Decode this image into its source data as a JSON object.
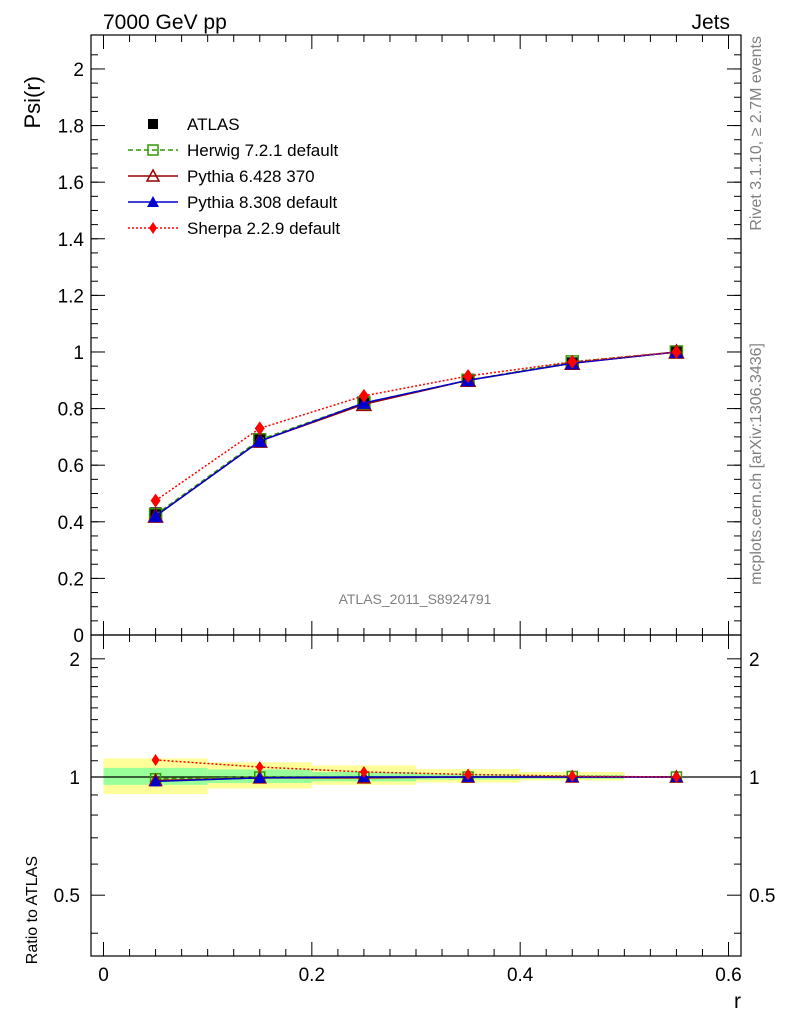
{
  "header": {
    "left": "7000 GeV pp",
    "right": "Jets"
  },
  "side_labels": {
    "rivet": "Rivet 3.1.10, ≥ 2.7M events",
    "mcplots": "mcplots.cern.ch [arXiv:1306.3436]"
  },
  "analysis_id": "ATLAS_2011_S8924791",
  "colors": {
    "atlas": "#000000",
    "herwig": "#339900",
    "pythia6": "#990000",
    "pythia8": "#0000cc",
    "sherpa": "#ff0000",
    "band_yellow": "#ffff99",
    "band_green": "#99ff99"
  },
  "chart_data": [
    {
      "type": "line",
      "name": "main",
      "xlabel": "",
      "ylabel": "Psi(r)",
      "xlim": [
        -0.012,
        0.612
      ],
      "ylim": [
        0,
        2.12
      ],
      "y_ticks": [
        0,
        0.2,
        0.4,
        0.6,
        0.8,
        1,
        1.2,
        1.4,
        1.6,
        1.8,
        2
      ],
      "y_tick_labels": [
        "0",
        "0.2",
        "0.4",
        "0.6",
        "0.8",
        "1",
        "1.2",
        "1.4",
        "1.6",
        "1.8",
        "2"
      ],
      "legend_position": "top-left",
      "x": [
        0.05,
        0.15,
        0.25,
        0.35,
        0.45,
        0.55
      ],
      "series": [
        {
          "name": "ATLAS",
          "key": "atlas",
          "marker": "square-filled",
          "line": "none",
          "values": [
            0.43,
            0.69,
            0.82,
            0.9,
            0.96,
            1.0
          ]
        },
        {
          "name": "Herwig 7.2.1 default",
          "key": "herwig",
          "marker": "square-open",
          "line": "dashed",
          "values": [
            0.425,
            0.69,
            0.82,
            0.9,
            0.965,
            1.0
          ]
        },
        {
          "name": "Pythia 6.428 370",
          "key": "pythia6",
          "marker": "triangle-open",
          "line": "solid",
          "values": [
            0.42,
            0.685,
            0.815,
            0.9,
            0.96,
            1.0
          ]
        },
        {
          "name": "Pythia 8.308 default",
          "key": "pythia8",
          "marker": "triangle-filled",
          "line": "solid",
          "values": [
            0.42,
            0.685,
            0.82,
            0.9,
            0.96,
            1.0
          ]
        },
        {
          "name": "Sherpa 2.2.9 default",
          "key": "sherpa",
          "marker": "diamond-filled",
          "line": "dotted",
          "values": [
            0.475,
            0.73,
            0.845,
            0.915,
            0.965,
            1.0
          ]
        }
      ]
    },
    {
      "type": "line",
      "name": "ratio",
      "xlabel": "r",
      "ylabel": "Ratio to ATLAS",
      "xlim": [
        -0.012,
        0.612
      ],
      "ylim": [
        0.35,
        2.3
      ],
      "y_scale": "log",
      "y_ticks": [
        0.5,
        1,
        2
      ],
      "y_tick_labels": [
        "0.5",
        "1",
        "2"
      ],
      "x_ticks": [
        0,
        0.2,
        0.4,
        0.6
      ],
      "x_tick_labels": [
        "0",
        "0.2",
        "0.4",
        "0.6"
      ],
      "x": [
        0.05,
        0.15,
        0.25,
        0.35,
        0.45,
        0.55
      ],
      "bands": {
        "bins": [
          [
            0,
            0.1
          ],
          [
            0.1,
            0.2
          ],
          [
            0.2,
            0.3
          ],
          [
            0.3,
            0.4
          ],
          [
            0.4,
            0.5
          ],
          [
            0.5,
            0.6
          ]
        ],
        "yellow": [
          [
            0.905,
            1.115
          ],
          [
            0.935,
            1.09
          ],
          [
            0.955,
            1.07
          ],
          [
            0.968,
            1.048
          ],
          [
            0.98,
            1.03
          ],
          [
            0.998,
            1.002
          ]
        ],
        "green": [
          [
            0.955,
            1.055
          ],
          [
            0.965,
            1.045
          ],
          [
            0.975,
            1.03
          ],
          [
            0.985,
            1.018
          ],
          [
            0.99,
            1.012
          ],
          [
            0.999,
            1.001
          ]
        ]
      },
      "series": [
        {
          "name": "Herwig 7.2.1 default",
          "key": "herwig",
          "marker": "square-open",
          "line": "dashed",
          "values": [
            0.99,
            1.0,
            1.0,
            1.0,
            1.003,
            1.0
          ]
        },
        {
          "name": "Pythia 6.428 370",
          "key": "pythia6",
          "marker": "triangle-open",
          "line": "solid",
          "values": [
            0.98,
            0.995,
            0.995,
            1.0,
            1.0,
            1.0
          ]
        },
        {
          "name": "Pythia 8.308 default",
          "key": "pythia8",
          "marker": "triangle-filled",
          "line": "solid",
          "values": [
            0.975,
            0.995,
            1.0,
            1.0,
            1.0,
            1.0
          ]
        },
        {
          "name": "Sherpa 2.2.9 default",
          "key": "sherpa",
          "marker": "diamond-filled",
          "line": "dotted",
          "values": [
            1.105,
            1.06,
            1.03,
            1.015,
            1.005,
            1.0
          ]
        }
      ]
    }
  ]
}
